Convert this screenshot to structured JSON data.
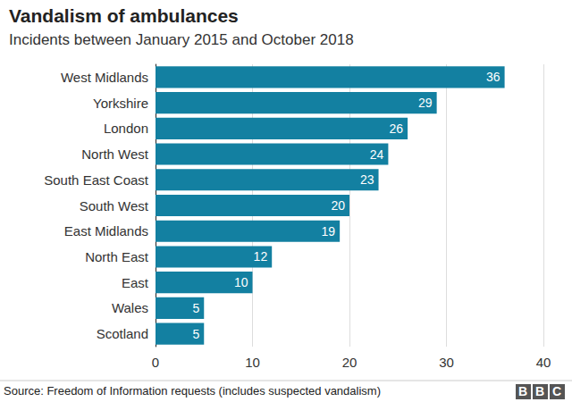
{
  "chart_data": {
    "type": "bar",
    "orientation": "horizontal",
    "title": "Vandalism of ambulances",
    "subtitle": "Incidents between January 2015 and October 2018",
    "source": "Source: Freedom of Information requests (includes suspected vandalism)",
    "logo": "BBC",
    "categories": [
      "West Midlands",
      "Yorkshire",
      "London",
      "North West",
      "South East Coast",
      "South West",
      "East Midlands",
      "North East",
      "East",
      "Wales",
      "Scotland"
    ],
    "values": [
      36,
      29,
      26,
      24,
      23,
      20,
      19,
      12,
      10,
      5,
      5
    ],
    "color": "#1380a1",
    "xlim": [
      0,
      40
    ],
    "xticks": [
      0,
      10,
      20,
      30,
      40
    ],
    "grid": true,
    "data_labels": true
  }
}
